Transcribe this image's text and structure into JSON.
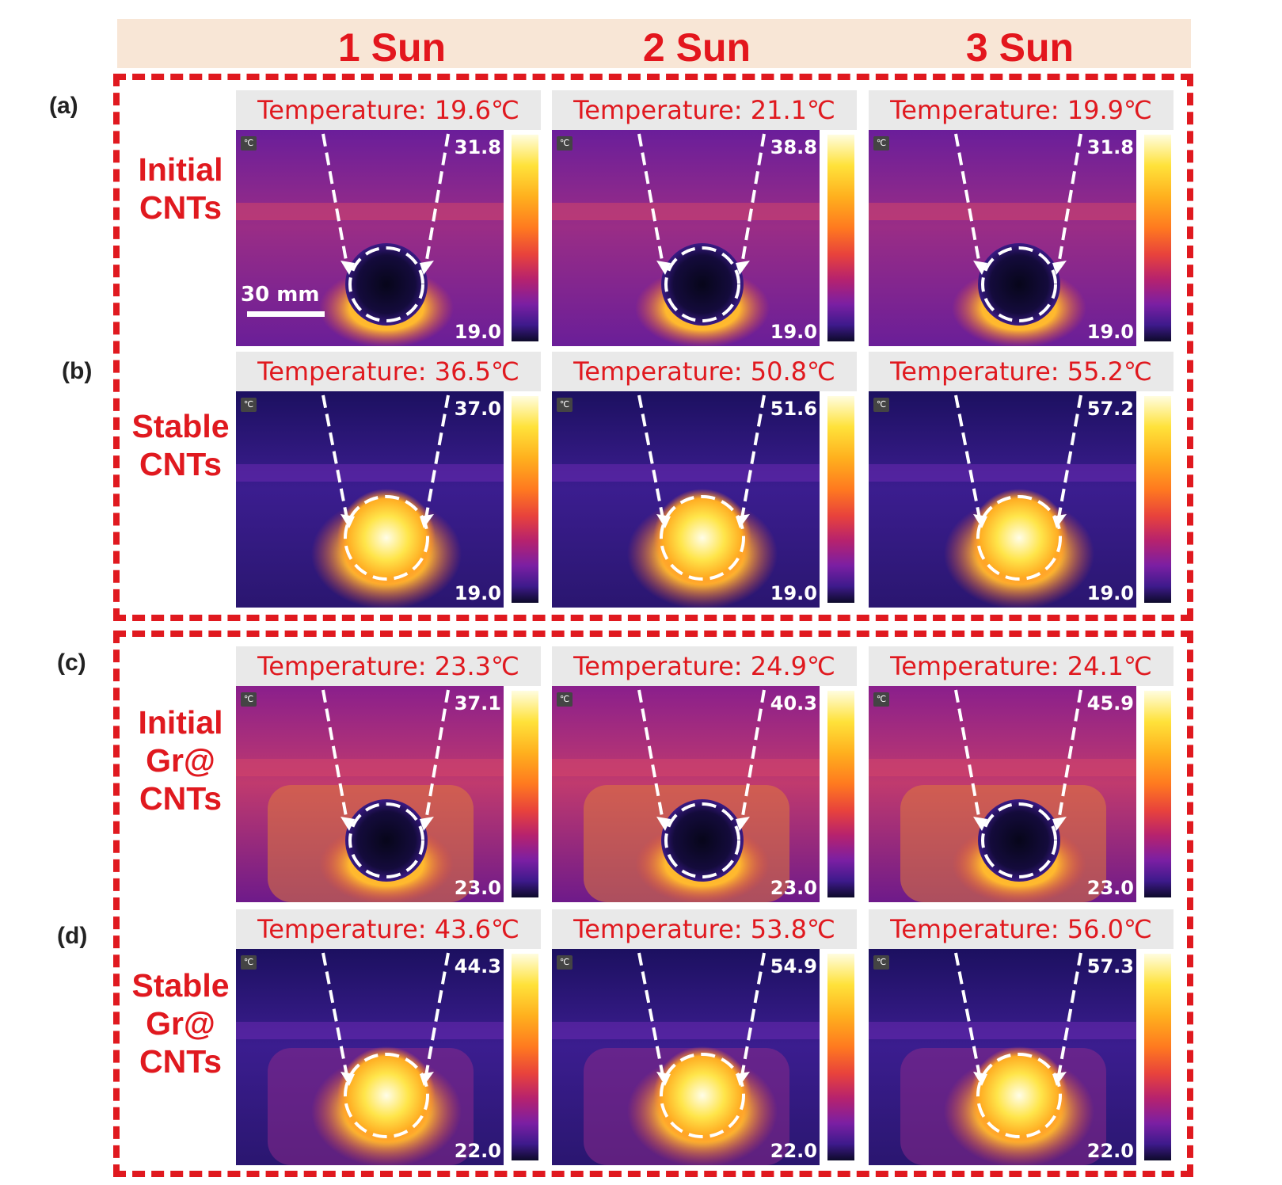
{
  "columns": [
    "1 Sun",
    "2 Sun",
    "3 Sun"
  ],
  "panel_labels": [
    "(a)",
    "(b)",
    "(c)",
    "(d)"
  ],
  "row_labels": [
    "Initial\nCNTs",
    "Stable\nCNTs",
    "Initial\nGr@\nCNTs",
    "Stable\nGr@\nCNTs"
  ],
  "scale_bar": "30 mm",
  "unit_badge": "℃",
  "rows": [
    {
      "state": "cool",
      "tiles": [
        {
          "header": "Temperature: 19.6℃",
          "max": "31.8",
          "min": "19.0"
        },
        {
          "header": "Temperature: 21.1℃",
          "max": "38.8",
          "min": "19.0"
        },
        {
          "header": "Temperature: 19.9℃",
          "max": "31.8",
          "min": "19.0"
        }
      ]
    },
    {
      "state": "hot",
      "tiles": [
        {
          "header": "Temperature: 36.5℃",
          "max": "37.0",
          "min": "19.0"
        },
        {
          "header": "Temperature: 50.8℃",
          "max": "51.6",
          "min": "19.0"
        },
        {
          "header": "Temperature: 55.2℃",
          "max": "57.2",
          "min": "19.0"
        }
      ]
    },
    {
      "state": "cool",
      "tiles": [
        {
          "header": "Temperature: 23.3℃",
          "max": "37.1",
          "min": "23.0"
        },
        {
          "header": "Temperature: 24.9℃",
          "max": "40.3",
          "min": "23.0"
        },
        {
          "header": "Temperature: 24.1℃",
          "max": "45.9",
          "min": "23.0"
        }
      ]
    },
    {
      "state": "hot",
      "tiles": [
        {
          "header": "Temperature: 43.6℃",
          "max": "44.3",
          "min": "22.0"
        },
        {
          "header": "Temperature: 53.8℃",
          "max": "54.9",
          "min": "22.0"
        },
        {
          "header": "Temperature: 56.0℃",
          "max": "57.3",
          "min": "22.0"
        }
      ]
    }
  ],
  "colors": {
    "accent_red": "#e0191f",
    "header_band": "#f8e6d6"
  }
}
